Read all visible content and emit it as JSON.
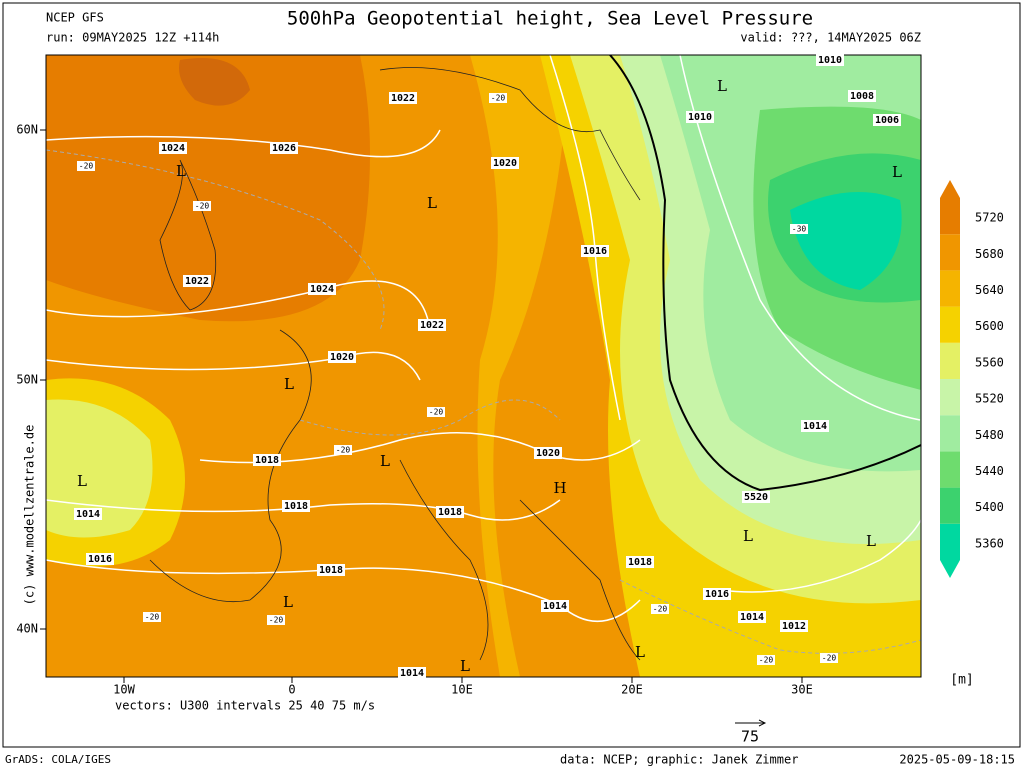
{
  "header": {
    "model": "NCEP GFS",
    "title": "500hPa Geopotential height, Sea Level Pressure",
    "run": "run: 09MAY2025 12Z +114h",
    "valid": "valid: ???, 14MAY2025 06Z"
  },
  "map": {
    "lat_labels": [
      "60N",
      "50N",
      "40N"
    ],
    "lon_labels": [
      "10W",
      "0",
      "10E",
      "20E",
      "30E"
    ],
    "isobar_labels": [
      "1010",
      "1008",
      "1006",
      "1010",
      "1022",
      "1024",
      "1026",
      "1020",
      "1016",
      "1022",
      "1024",
      "1022",
      "1020",
      "1014",
      "1020",
      "1018",
      "1018",
      "1018",
      "5520",
      "1014",
      "1016",
      "1018",
      "1018",
      "1016",
      "1014",
      "1014",
      "1012",
      "1014"
    ],
    "temperature_labels": [
      "-20",
      "-20",
      "-20",
      "-30",
      "-20",
      "-20",
      "-20",
      "-20",
      "-20",
      "-20",
      "-20"
    ],
    "pressure_centers": [
      "L",
      "L",
      "L",
      "L",
      "L",
      "L",
      "L",
      "L",
      "L",
      "L",
      "L",
      "L",
      "H"
    ]
  },
  "colorbar": {
    "levels": [
      5360,
      5400,
      5440,
      5480,
      5520,
      5560,
      5600,
      5640,
      5680,
      5720
    ],
    "colors": [
      "#00d8a0",
      "#3cd26e",
      "#6edc6e",
      "#a0eca0",
      "#c8f4a8",
      "#e4f064",
      "#f5d200",
      "#f5b400",
      "#f09600",
      "#e67d00"
    ],
    "unit": "[m]"
  },
  "vectors": {
    "caption": "vectors: U300 intervals 25 40 75 m/s",
    "scale_label": "75"
  },
  "side_credit": "(c) www.modellzentrale.de",
  "footer": {
    "left": "GrADS: COLA/IGES",
    "center": "data: NCEP; graphic: Janek Zimmer",
    "right": "2025-05-09-18:15"
  }
}
